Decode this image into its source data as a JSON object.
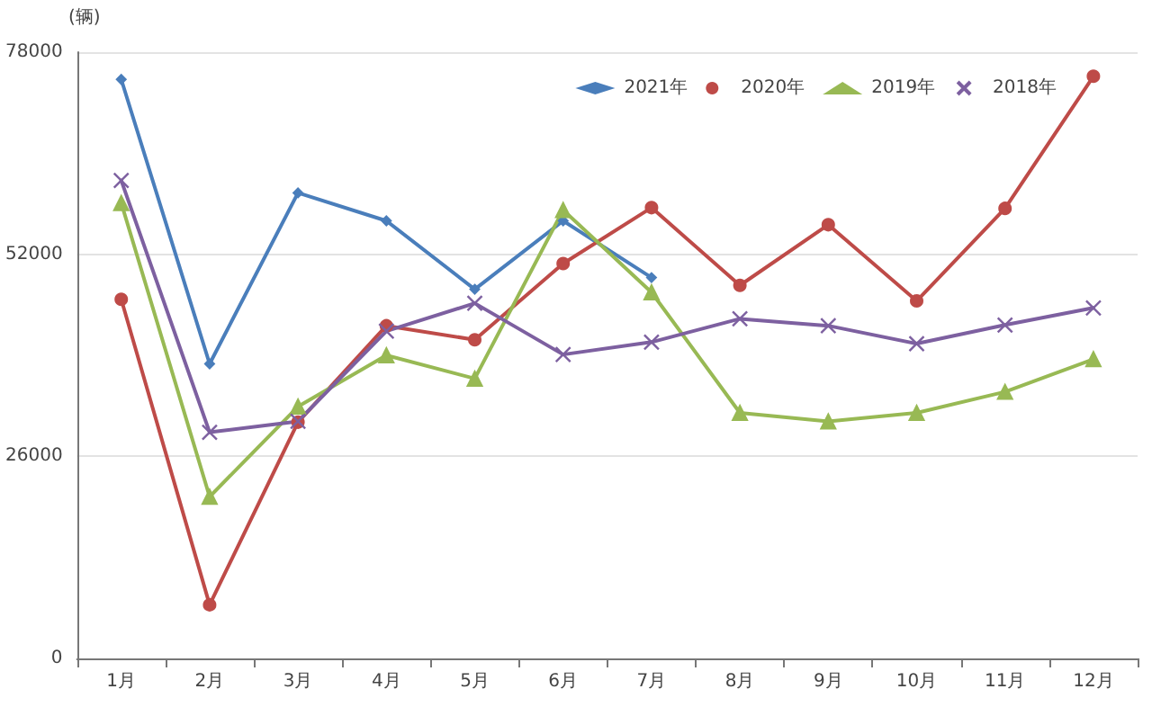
{
  "chart_data": {
    "type": "line",
    "ylabel": "(辆)",
    "categories": [
      "1月",
      "2月",
      "3月",
      "4月",
      "5月",
      "6月",
      "7月",
      "8月",
      "9月",
      "10月",
      "11月",
      "12月"
    ],
    "series": [
      {
        "name": "2021年",
        "color": "#4a7ebb",
        "marker": "diamond",
        "values": [
          74500,
          37900,
          59900,
          56300,
          47500,
          56300,
          49000,
          null,
          null,
          null,
          null,
          null
        ]
      },
      {
        "name": "2020年",
        "color": "#be4b48",
        "marker": "circle",
        "values": [
          46200,
          6900,
          30400,
          42800,
          41000,
          50800,
          58000,
          48000,
          55800,
          46000,
          57900,
          74900
        ]
      },
      {
        "name": "2019年",
        "color": "#98b954",
        "marker": "triangle",
        "values": [
          58600,
          20800,
          32400,
          39000,
          36000,
          57700,
          47100,
          31600,
          30500,
          31600,
          34300,
          38500
        ]
      },
      {
        "name": "2018年",
        "color": "#7d60a0",
        "marker": "cross",
        "values": [
          61500,
          29100,
          30500,
          42100,
          45700,
          39100,
          40700,
          43700,
          42800,
          40500,
          42900,
          45100
        ]
      }
    ],
    "ylim": [
      0,
      78000
    ],
    "yticks": [
      0,
      26000,
      52000,
      78000
    ],
    "grid": "y",
    "legend": "top right"
  }
}
